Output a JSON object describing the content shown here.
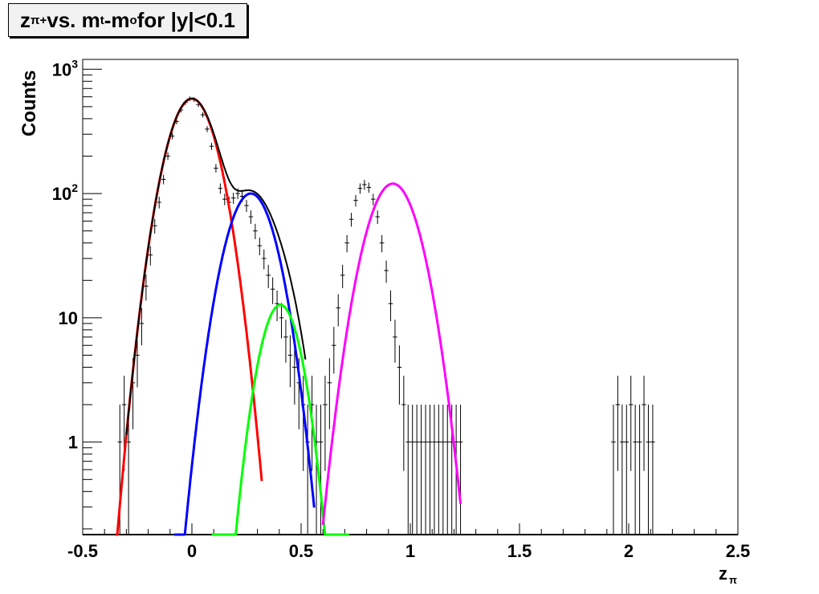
{
  "title": {
    "main": "z",
    "main_sub": "π+",
    "middle": " vs. m",
    "middle_sub": "t",
    "dash": "-m",
    "dash_sub": "o",
    "tail": " for |y|<0.1"
  },
  "chart_data": {
    "type": "line",
    "title": "zπ+ vs. mt-mo for |y|<0.1",
    "xlabel": "zπ",
    "ylabel": "Counts",
    "xlim": [
      -0.5,
      2.5
    ],
    "ylim": [
      0.18,
      1200
    ],
    "yscale": "log",
    "grid": false,
    "xticks": [
      "-0.5",
      "0",
      "0.5",
      "1",
      "1.5",
      "2",
      "2.5"
    ],
    "yticks": [
      "1",
      "10",
      "10²",
      "10³"
    ],
    "data_histogram": {
      "name": "data",
      "color": "#000000",
      "x": [
        -0.33,
        -0.31,
        -0.29,
        -0.27,
        -0.25,
        -0.23,
        -0.21,
        -0.19,
        -0.17,
        -0.15,
        -0.13,
        -0.11,
        -0.09,
        -0.07,
        -0.05,
        -0.03,
        -0.01,
        0.01,
        0.03,
        0.05,
        0.07,
        0.09,
        0.11,
        0.13,
        0.15,
        0.17,
        0.19,
        0.21,
        0.23,
        0.25,
        0.27,
        0.29,
        0.31,
        0.33,
        0.35,
        0.37,
        0.39,
        0.41,
        0.43,
        0.45,
        0.47,
        0.49,
        0.51,
        0.53,
        0.55,
        0.57,
        0.59,
        0.61,
        0.63,
        0.65,
        0.67,
        0.69,
        0.71,
        0.73,
        0.75,
        0.77,
        0.79,
        0.81,
        0.83,
        0.85,
        0.87,
        0.89,
        0.91,
        0.93,
        0.95,
        0.97,
        0.99,
        1.01,
        1.03,
        1.05,
        1.07,
        1.09,
        1.11,
        1.13,
        1.15,
        1.17,
        1.19,
        1.21,
        1.23,
        1.93,
        1.95,
        1.97,
        1.99,
        2.01,
        2.03,
        2.05,
        2.07,
        2.09,
        2.11
      ],
      "y": [
        1,
        2,
        1,
        3,
        5,
        9,
        18,
        32,
        55,
        85,
        130,
        200,
        290,
        380,
        470,
        540,
        580,
        570,
        520,
        430,
        330,
        240,
        160,
        110,
        90,
        85,
        92,
        100,
        95,
        80,
        65,
        50,
        38,
        30,
        22,
        17,
        13,
        10,
        7,
        5,
        4,
        3,
        2,
        1,
        2,
        1,
        1,
        2,
        3,
        6,
        12,
        22,
        40,
        62,
        88,
        110,
        118,
        112,
        90,
        65,
        40,
        24,
        13,
        7,
        4,
        2,
        1,
        1,
        1,
        1,
        1,
        1,
        1,
        1,
        1,
        1,
        1,
        1,
        1,
        1,
        2,
        1,
        1,
        2,
        1,
        1,
        2,
        1,
        1
      ]
    },
    "series": [
      {
        "name": "",
        "color": "#000000",
        "mu": null,
        "role": "total"
      },
      {
        "name": "",
        "color": "#ff0000",
        "amp": 580,
        "mu": 0.0,
        "sigma": 0.085,
        "xrange": [
          -0.35,
          0.32
        ]
      },
      {
        "name": "",
        "color": "#0000ff",
        "amp": 100,
        "mu": 0.27,
        "sigma": 0.085,
        "xrange": [
          -0.08,
          0.56
        ]
      },
      {
        "name": "",
        "color": "#00ff00",
        "amp": 12.7,
        "mu": 0.405,
        "sigma": 0.07,
        "xrange": [
          0.09,
          0.72
        ]
      },
      {
        "name": "",
        "color": "#ff00ff",
        "amp": 120,
        "mu": 0.92,
        "sigma": 0.09,
        "xrange": [
          0.6,
          1.23
        ]
      }
    ]
  }
}
